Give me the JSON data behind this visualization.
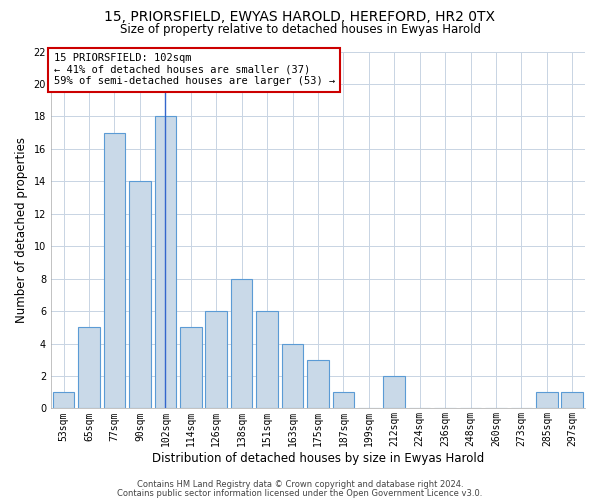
{
  "title": "15, PRIORSFIELD, EWYAS HAROLD, HEREFORD, HR2 0TX",
  "subtitle": "Size of property relative to detached houses in Ewyas Harold",
  "xlabel": "Distribution of detached houses by size in Ewyas Harold",
  "ylabel": "Number of detached properties",
  "bin_labels": [
    "53sqm",
    "65sqm",
    "77sqm",
    "90sqm",
    "102sqm",
    "114sqm",
    "126sqm",
    "138sqm",
    "151sqm",
    "163sqm",
    "175sqm",
    "187sqm",
    "199sqm",
    "212sqm",
    "224sqm",
    "236sqm",
    "248sqm",
    "260sqm",
    "273sqm",
    "285sqm",
    "297sqm"
  ],
  "values": [
    1,
    5,
    17,
    14,
    18,
    5,
    6,
    8,
    6,
    4,
    3,
    1,
    0,
    2,
    0,
    0,
    0,
    0,
    0,
    1,
    1
  ],
  "bar_color": "#c9d9e8",
  "bar_edge_color": "#5b9bd5",
  "marker_bin_index": 4,
  "marker_line_color": "#3366cc",
  "annotation_text": "15 PRIORSFIELD: 102sqm\n← 41% of detached houses are smaller (37)\n59% of semi-detached houses are larger (53) →",
  "annotation_box_color": "#ffffff",
  "annotation_box_edge_color": "#cc0000",
  "ylim": [
    0,
    22
  ],
  "yticks": [
    0,
    2,
    4,
    6,
    8,
    10,
    12,
    14,
    16,
    18,
    20,
    22
  ],
  "footer1": "Contains HM Land Registry data © Crown copyright and database right 2024.",
  "footer2": "Contains public sector information licensed under the Open Government Licence v3.0.",
  "bg_color": "#ffffff",
  "grid_color": "#c8d4e3",
  "title_fontsize": 10,
  "subtitle_fontsize": 8.5,
  "ylabel_fontsize": 8.5,
  "xlabel_fontsize": 8.5,
  "tick_fontsize": 7,
  "annotation_fontsize": 7.5,
  "footer_fontsize": 6
}
